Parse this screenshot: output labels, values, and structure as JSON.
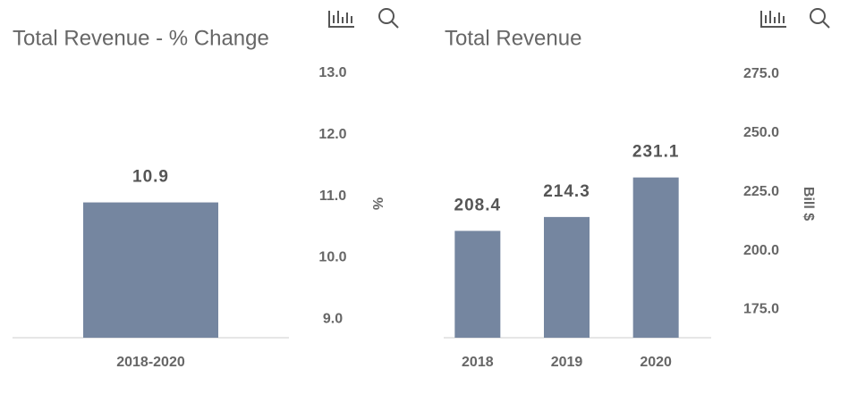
{
  "chart_data": [
    {
      "type": "bar",
      "title": "Total Revenue - % Change",
      "categories": [
        "2018-2020"
      ],
      "values": [
        10.9
      ],
      "color": "#7586a0",
      "ylabel": "%",
      "ylim": [
        8.7,
        13.0
      ],
      "yticks": [
        {
          "value": 9,
          "label": "9.0"
        },
        {
          "value": 10,
          "label": "10.0"
        },
        {
          "value": 11,
          "label": "11.0"
        },
        {
          "value": 12,
          "label": "12.0"
        },
        {
          "value": 13,
          "label": "13.0"
        }
      ]
    },
    {
      "type": "bar",
      "title": "Total Revenue",
      "categories": [
        "2018",
        "2019",
        "2020"
      ],
      "values": [
        208.4,
        214.3,
        231.1
      ],
      "color": "#7586a0",
      "ylabel": "Bill $",
      "ylim": [
        163,
        275
      ],
      "yticks": [
        {
          "value": 175,
          "label": "175.0"
        },
        {
          "value": 200,
          "label": "200.0"
        },
        {
          "value": 225,
          "label": "225.0"
        },
        {
          "value": 250,
          "label": "250.0"
        },
        {
          "value": 275,
          "label": "275.0"
        }
      ]
    }
  ]
}
